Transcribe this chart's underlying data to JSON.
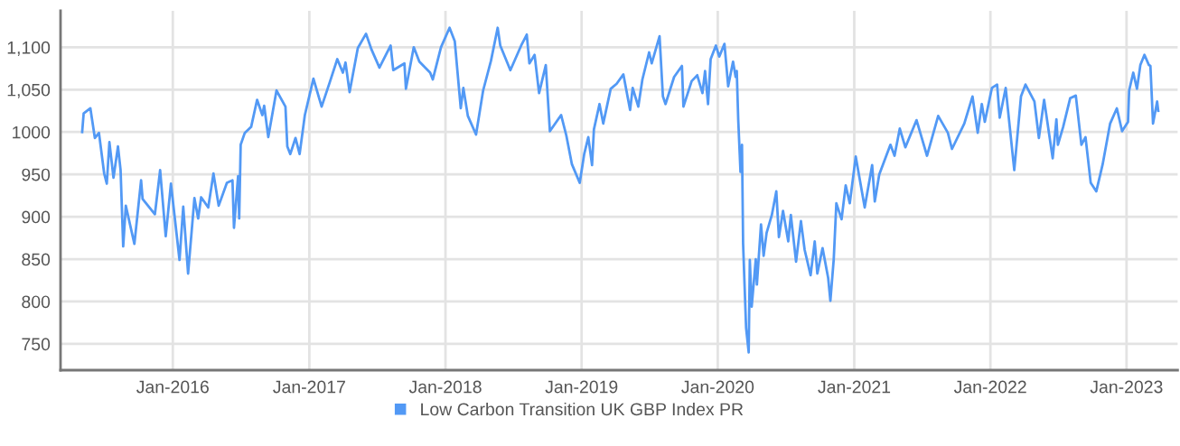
{
  "chart_data": {
    "type": "line",
    "legend": "bottom",
    "grid": true,
    "marker": "none",
    "line_style": "solid",
    "xlim": [
      "2015-03-06",
      "2023-05-18"
    ],
    "xticks": [
      {
        "value": "2016-01-01",
        "label": "Jan-2016"
      },
      {
        "value": "2017-01-01",
        "label": "Jan-2017"
      },
      {
        "value": "2018-01-01",
        "label": "Jan-2018"
      },
      {
        "value": "2019-01-01",
        "label": "Jan-2019"
      },
      {
        "value": "2020-01-01",
        "label": "Jan-2020"
      },
      {
        "value": "2021-01-01",
        "label": "Jan-2021"
      },
      {
        "value": "2022-01-01",
        "label": "Jan-2022"
      },
      {
        "value": "2023-01-01",
        "label": "Jan-2023"
      }
    ],
    "ylim": [
      719,
      1143
    ],
    "yticks": [
      750,
      800,
      850,
      900,
      950,
      1000,
      {
        "value": 1050,
        "label": "1,050"
      },
      {
        "value": 1100,
        "label": "1,100"
      }
    ],
    "series": [
      {
        "name": "Low Carbon Transition UK GBP Index PR",
        "color": "#5299f5",
        "x": [
          "2015-05-03",
          "2015-05-07",
          "2015-05-25",
          "2015-06-06",
          "2015-06-17",
          "2015-07-01",
          "2015-07-08",
          "2015-07-15",
          "2015-07-26",
          "2015-08-07",
          "2015-08-14",
          "2015-08-21",
          "2015-08-28",
          "2015-09-20",
          "2015-10-08",
          "2015-10-12",
          "2015-11-14",
          "2015-11-28",
          "2015-12-13",
          "2015-12-27",
          "2016-01-19",
          "2016-01-29",
          "2016-02-11",
          "2016-02-28",
          "2016-03-09",
          "2016-03-17",
          "2016-04-05",
          "2016-04-19",
          "2016-05-03",
          "2016-05-25",
          "2016-06-09",
          "2016-06-13",
          "2016-06-24",
          "2016-06-27",
          "2016-07-01",
          "2016-07-12",
          "2016-07-29",
          "2016-08-14",
          "2016-08-28",
          "2016-09-02",
          "2016-09-13",
          "2016-10-05",
          "2016-10-29",
          "2016-11-03",
          "2016-11-11",
          "2016-11-25",
          "2016-12-06",
          "2016-12-20",
          "2017-01-12",
          "2017-02-03",
          "2017-02-25",
          "2017-03-17",
          "2017-04-01",
          "2017-04-08",
          "2017-04-19",
          "2017-05-11",
          "2017-06-02",
          "2017-06-17",
          "2017-07-08",
          "2017-08-07",
          "2017-08-14",
          "2017-09-13",
          "2017-09-17",
          "2017-10-08",
          "2017-10-23",
          "2017-11-21",
          "2017-11-28",
          "2017-12-20",
          "2018-01-12",
          "2018-01-26",
          "2018-02-11",
          "2018-02-18",
          "2018-03-02",
          "2018-03-24",
          "2018-04-12",
          "2018-05-03",
          "2018-05-21",
          "2018-05-28",
          "2018-06-24",
          "2018-07-23",
          "2018-08-07",
          "2018-08-14",
          "2018-08-28",
          "2018-09-09",
          "2018-09-27",
          "2018-10-08",
          "2018-11-07",
          "2018-11-21",
          "2018-12-06",
          "2018-12-27",
          "2019-01-08",
          "2019-01-19",
          "2019-01-29",
          "2019-02-03",
          "2019-02-18",
          "2019-02-28",
          "2019-03-20",
          "2019-04-05",
          "2019-04-23",
          "2019-05-11",
          "2019-05-18",
          "2019-06-02",
          "2019-06-13",
          "2019-07-01",
          "2019-07-08",
          "2019-07-29",
          "2019-08-07",
          "2019-08-14",
          "2019-09-06",
          "2019-09-27",
          "2019-10-01",
          "2019-10-23",
          "2019-11-07",
          "2019-11-21",
          "2019-11-28",
          "2019-12-06",
          "2019-12-13",
          "2019-12-27",
          "2020-01-05",
          "2020-01-19",
          "2020-01-29",
          "2020-02-11",
          "2020-02-18",
          "2020-02-21",
          "2020-02-25",
          "2020-03-02",
          "2020-03-06",
          "2020-03-09",
          "2020-03-17",
          "2020-03-24",
          "2020-03-27",
          "2020-04-01",
          "2020-04-12",
          "2020-04-15",
          "2020-04-26",
          "2020-05-03",
          "2020-05-11",
          "2020-05-25",
          "2020-06-06",
          "2020-06-13",
          "2020-06-24",
          "2020-07-08",
          "2020-07-15",
          "2020-07-29",
          "2020-08-11",
          "2020-08-21",
          "2020-09-06",
          "2020-09-17",
          "2020-09-24",
          "2020-10-08",
          "2020-10-23",
          "2020-10-29",
          "2020-11-07",
          "2020-11-14",
          "2020-11-28",
          "2020-12-09",
          "2020-12-20",
          "2021-01-05",
          "2021-01-29",
          "2021-02-18",
          "2021-02-25",
          "2021-03-09",
          "2021-04-08",
          "2021-04-19",
          "2021-05-03",
          "2021-05-18",
          "2021-06-17",
          "2021-06-27",
          "2021-07-15",
          "2021-08-14",
          "2021-09-09",
          "2021-09-20",
          "2021-10-23",
          "2021-11-14",
          "2021-11-28",
          "2021-12-09",
          "2021-12-17",
          "2022-01-05",
          "2022-01-19",
          "2022-01-26",
          "2022-02-11",
          "2022-02-25",
          "2022-03-06",
          "2022-03-24",
          "2022-04-05",
          "2022-04-29",
          "2022-05-11",
          "2022-05-25",
          "2022-06-17",
          "2022-06-27",
          "2022-07-01",
          "2022-07-15",
          "2022-08-03",
          "2022-08-18",
          "2022-09-02",
          "2022-09-13",
          "2022-09-27",
          "2022-10-12",
          "2022-10-29",
          "2022-11-18",
          "2022-12-06",
          "2022-12-20",
          "2023-01-05",
          "2023-01-08",
          "2023-01-19",
          "2023-01-29",
          "2023-02-07",
          "2023-02-18",
          "2023-03-02",
          "2023-03-06",
          "2023-03-13",
          "2023-03-24",
          "2023-03-27"
        ],
        "values": [
          1000,
          1022,
          1028,
          993,
          999,
          951,
          939,
          988,
          946,
          983,
          955,
          865,
          913,
          868,
          943,
          921,
          903,
          955,
          877,
          939,
          849,
          912,
          833,
          922,
          898,
          923,
          911,
          951,
          913,
          940,
          943,
          887,
          948,
          898,
          985,
          999,
          1006,
          1038,
          1020,
          1031,
          994,
          1049,
          1030,
          983,
          974,
          993,
          974,
          1020,
          1063,
          1030,
          1059,
          1086,
          1070,
          1082,
          1047,
          1099,
          1116,
          1097,
          1076,
          1102,
          1073,
          1081,
          1051,
          1100,
          1083,
          1070,
          1062,
          1100,
          1123,
          1107,
          1028,
          1052,
          1019,
          997,
          1049,
          1084,
          1123,
          1102,
          1073,
          1102,
          1115,
          1081,
          1091,
          1046,
          1079,
          1001,
          1020,
          996,
          962,
          940,
          974,
          994,
          961,
          1003,
          1033,
          1010,
          1051,
          1057,
          1068,
          1026,
          1052,
          1030,
          1062,
          1094,
          1081,
          1113,
          1042,
          1033,
          1065,
          1078,
          1030,
          1060,
          1067,
          1046,
          1072,
          1033,
          1086,
          1102,
          1089,
          1104,
          1054,
          1083,
          1065,
          1072,
          1014,
          953,
          985,
          868,
          769,
          740,
          849,
          794,
          850,
          820,
          891,
          854,
          881,
          902,
          930,
          876,
          907,
          871,
          902,
          847,
          895,
          861,
          831,
          871,
          833,
          863,
          828,
          801,
          850,
          916,
          897,
          937,
          916,
          971,
          911,
          961,
          918,
          950,
          985,
          972,
          1004,
          982,
          1014,
          999,
          972,
          1019,
          999,
          980,
          1010,
          1042,
          999,
          1033,
          1012,
          1052,
          1056,
          1017,
          1052,
          993,
          955,
          1042,
          1056,
          1036,
          993,
          1038,
          969,
          1015,
          985,
          1006,
          1040,
          1043,
          985,
          994,
          940,
          930,
          962,
          1010,
          1028,
          1001,
          1012,
          1049,
          1070,
          1051,
          1079,
          1091,
          1079,
          1078,
          1010,
          1036,
          1025
        ]
      }
    ]
  }
}
